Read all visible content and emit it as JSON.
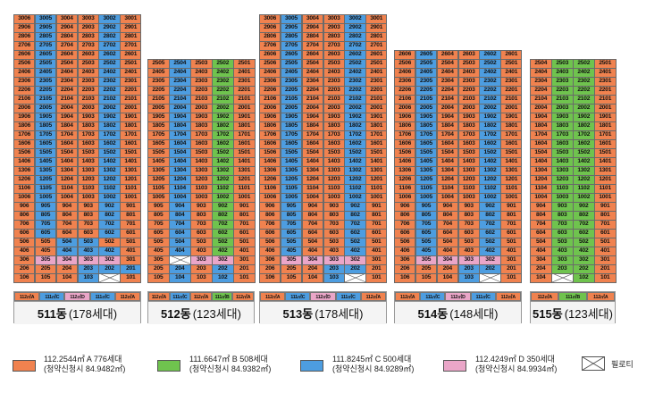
{
  "colors": {
    "A": "#f0824f",
    "B": "#6fc34e",
    "C": "#4d9de0",
    "D": "#eaa6c8"
  },
  "buildings": [
    {
      "name": "511동",
      "households": "(178세대)",
      "floors": 30,
      "cols": [
        "06",
        "05",
        "04",
        "03",
        "02",
        "01"
      ],
      "tower_colors": [
        "A",
        "C",
        "A",
        "A",
        "C",
        "A"
      ],
      "low_colors": {
        "floor": 10,
        "colors": [
          "A",
          "A",
          "A",
          "C",
          "A",
          "A"
        ]
      },
      "low2_colors": {
        "floor": 9,
        "colors": [
          "A",
          "A",
          "C",
          "C",
          "C",
          "A"
        ]
      },
      "overrides": [
        {
          "floor": 5,
          "colors": [
            "A",
            "A",
            "C",
            "C",
            "A",
            "A"
          ]
        },
        {
          "floor": 4,
          "colors": [
            "A",
            "A",
            "C",
            "C",
            "C",
            "A"
          ]
        },
        {
          "floor": 3,
          "colors": [
            "A",
            "D",
            "D",
            "D",
            "D",
            "A"
          ]
        },
        {
          "floor": 2,
          "colors": [
            "A",
            "A",
            "A",
            "C",
            "C",
            "C"
          ]
        },
        {
          "floor": 1,
          "colors": [
            "A",
            "A",
            "A",
            "C",
            "X",
            "A"
          ]
        }
      ],
      "mid_colors": [
        "A",
        "C",
        "A",
        "A",
        "C",
        "A"
      ],
      "pilotis": [
        [
          1,
          "02"
        ]
      ],
      "type_row": [
        "112㎡A",
        "111㎡C",
        "112㎡D",
        "111㎡C",
        "112㎡A"
      ]
    },
    {
      "name": "512동",
      "households": "(123세대)",
      "floors": 25,
      "cols": [
        "05",
        "04",
        "03",
        "02",
        "01"
      ],
      "tower_colors": [
        "A",
        "C",
        "A",
        "B",
        "A"
      ],
      "overrides": [
        {
          "floor": 3,
          "colors": [
            "A",
            "X",
            "D",
            "D",
            "A"
          ]
        },
        {
          "floor": 2,
          "colors": [
            "A",
            "C",
            "A",
            "C",
            "A"
          ]
        },
        {
          "floor": 1,
          "colors": [
            "A",
            "C",
            "A",
            "C",
            "A"
          ]
        }
      ],
      "pilotis": [
        [
          3,
          "04"
        ]
      ],
      "type_row": [
        "112㎡A",
        "111㎡C",
        "112㎡A",
        "111㎡B",
        "112㎡A"
      ]
    },
    {
      "name": "513동",
      "households": "(178세대)",
      "floors": 30,
      "cols": [
        "06",
        "05",
        "04",
        "03",
        "02",
        "01"
      ],
      "tower_colors": [
        "A",
        "C",
        "A",
        "A",
        "C",
        "A"
      ],
      "overrides": [
        {
          "floor": 3,
          "colors": [
            "A",
            "D",
            "D",
            "D",
            "D",
            "A"
          ]
        },
        {
          "floor": 2,
          "colors": [
            "A",
            "A",
            "A",
            "C",
            "C",
            "A"
          ]
        },
        {
          "floor": 1,
          "colors": [
            "A",
            "A",
            "A",
            "C",
            "X",
            "A"
          ]
        }
      ],
      "pilotis": [
        [
          1,
          "02"
        ]
      ],
      "type_row": [
        "112㎡A",
        "111㎡C",
        "112㎡D",
        "111㎡C",
        "112㎡A"
      ]
    },
    {
      "name": "514동",
      "households": "(148세대)",
      "floors": 26,
      "cols": [
        "06",
        "05",
        "04",
        "03",
        "02",
        "01"
      ],
      "tower_colors": [
        "A",
        "C",
        "A",
        "A",
        "C",
        "A"
      ],
      "overrides": [
        {
          "floor": 3,
          "colors": [
            "A",
            "D",
            "D",
            "D",
            "D",
            "A"
          ]
        },
        {
          "floor": 2,
          "colors": [
            "A",
            "A",
            "A",
            "C",
            "C",
            "A"
          ]
        },
        {
          "floor": 1,
          "colors": [
            "A",
            "A",
            "A",
            "C",
            "X",
            "A"
          ]
        }
      ],
      "pilotis": [
        [
          1,
          "02"
        ]
      ],
      "type_row": [
        "112㎡A",
        "111㎡C",
        "112㎡D",
        "111㎡C",
        "112㎡A"
      ]
    },
    {
      "name": "515동",
      "households": "(123세대)",
      "floors": 25,
      "cols": [
        "04",
        "03",
        "02",
        "01"
      ],
      "tower_colors": [
        "A",
        "B",
        "B",
        "A"
      ],
      "overrides": [
        {
          "floor": 3,
          "colors": [
            "A",
            "B",
            "B",
            "A"
          ]
        },
        {
          "floor": 2,
          "colors": [
            "A",
            "B",
            "B",
            "A"
          ]
        },
        {
          "floor": 1,
          "colors": [
            "A",
            "X",
            "B",
            "A"
          ]
        }
      ],
      "pilotis": [
        [
          1,
          "03"
        ]
      ],
      "type_row": [
        "112㎡A",
        "111㎡B",
        "112㎡A"
      ]
    }
  ],
  "legend": [
    {
      "key": "A",
      "line1": "112.2544㎡ A  776세대",
      "line2": "(청약신청시 84.9482㎡)"
    },
    {
      "key": "B",
      "line1": "111.6647㎡ B  508세대",
      "line2": "(청약신청시 84.9382㎡)"
    },
    {
      "key": "C",
      "line1": "111.8245㎡ C  500세대",
      "line2": "(청약신청시 84.9289㎡)"
    },
    {
      "key": "D",
      "line1": "112.4249㎡ D  350세대",
      "line2": "(청약신청시 84.9934㎡)"
    }
  ],
  "pilotis_label": "필로티"
}
